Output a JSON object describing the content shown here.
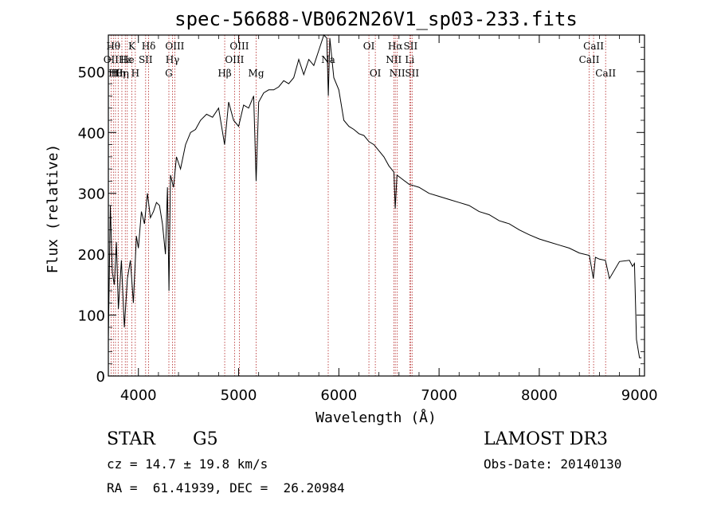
{
  "chart_data": {
    "type": "line",
    "title": "spec-56688-VB062N26V1_sp03-233.fits",
    "xlabel": "Wavelength (Å)",
    "ylabel": "Flux (relative)",
    "xlim": [
      3700,
      9050
    ],
    "ylim": [
      0,
      560
    ],
    "x_ticks": [
      4000,
      5000,
      6000,
      7000,
      8000,
      9000
    ],
    "y_ticks": [
      0,
      100,
      200,
      300,
      400,
      500
    ],
    "line_color": "#000000",
    "marker_color": "#b22222",
    "spectrum": {
      "name": "flux",
      "x": [
        3700,
        3720,
        3740,
        3760,
        3780,
        3800,
        3830,
        3860,
        3890,
        3920,
        3950,
        3980,
        4000,
        4030,
        4060,
        4090,
        4120,
        4150,
        4180,
        4210,
        4240,
        4270,
        4290,
        4305,
        4320,
        4350,
        4380,
        4420,
        4470,
        4520,
        4570,
        4620,
        4680,
        4740,
        4800,
        4860,
        4900,
        4950,
        5000,
        5050,
        5100,
        5150,
        5175,
        5200,
        5250,
        5300,
        5350,
        5400,
        5450,
        5500,
        5550,
        5600,
        5650,
        5700,
        5750,
        5800,
        5850,
        5880,
        5895,
        5910,
        5950,
        6000,
        6050,
        6100,
        6150,
        6200,
        6250,
        6300,
        6350,
        6400,
        6450,
        6500,
        6550,
        6563,
        6580,
        6620,
        6700,
        6800,
        6900,
        7000,
        7100,
        7200,
        7300,
        7400,
        7500,
        7600,
        7700,
        7800,
        7900,
        8000,
        8100,
        8200,
        8300,
        8400,
        8500,
        8540,
        8560,
        8600,
        8660,
        8700,
        8800,
        8900,
        8930,
        8950,
        8970,
        9000,
        9020
      ],
      "y": [
        60,
        280,
        170,
        150,
        220,
        110,
        190,
        80,
        160,
        190,
        120,
        230,
        210,
        270,
        250,
        300,
        260,
        270,
        285,
        280,
        250,
        200,
        310,
        140,
        330,
        310,
        360,
        340,
        380,
        400,
        405,
        420,
        430,
        425,
        440,
        380,
        450,
        420,
        410,
        445,
        440,
        460,
        320,
        450,
        465,
        470,
        470,
        475,
        485,
        480,
        490,
        520,
        495,
        520,
        510,
        535,
        560,
        555,
        460,
        555,
        490,
        470,
        420,
        410,
        405,
        398,
        395,
        385,
        380,
        370,
        360,
        345,
        335,
        275,
        330,
        325,
        315,
        310,
        300,
        295,
        290,
        285,
        280,
        270,
        265,
        255,
        250,
        240,
        232,
        225,
        220,
        215,
        210,
        202,
        198,
        160,
        195,
        192,
        190,
        160,
        188,
        190,
        180,
        185,
        60,
        30,
        30
      ]
    },
    "line_markers": [
      {
        "wavelength": 3727,
        "label": "OII",
        "row": 2
      },
      {
        "wavelength": 3750,
        "label": "Hθ",
        "row": 1
      },
      {
        "wavelength": 3771,
        "label": "Hθ",
        "row": 3
      },
      {
        "wavelength": 3798,
        "label": "Hη",
        "row": 3
      },
      {
        "wavelength": 3835,
        "label": "Hη",
        "row": 3
      },
      {
        "wavelength": 3869,
        "label": "Hε",
        "row": 2
      },
      {
        "wavelength": 3889,
        "label": "He",
        "row": 2
      },
      {
        "wavelength": 3934,
        "label": "K",
        "row": 1
      },
      {
        "wavelength": 3969,
        "label": "H",
        "row": 3
      },
      {
        "wavelength": 4072,
        "label": "SII",
        "row": 2
      },
      {
        "wavelength": 4102,
        "label": "Hδ",
        "row": 1
      },
      {
        "wavelength": 4304,
        "label": "G",
        "row": 3
      },
      {
        "wavelength": 4340,
        "label": "Hγ",
        "row": 2
      },
      {
        "wavelength": 4363,
        "label": "OIII",
        "row": 1
      },
      {
        "wavelength": 4861,
        "label": "Hβ",
        "row": 3
      },
      {
        "wavelength": 4959,
        "label": "OIII",
        "row": 2
      },
      {
        "wavelength": 5007,
        "label": "OIII",
        "row": 1
      },
      {
        "wavelength": 5175,
        "label": "Mg",
        "row": 3
      },
      {
        "wavelength": 5894,
        "label": "Na",
        "row": 2
      },
      {
        "wavelength": 6300,
        "label": "OI",
        "row": 1
      },
      {
        "wavelength": 6364,
        "label": "OI",
        "row": 3
      },
      {
        "wavelength": 6548,
        "label": "NII",
        "row": 2
      },
      {
        "wavelength": 6563,
        "label": "Hα",
        "row": 1
      },
      {
        "wavelength": 6583,
        "label": "NII",
        "row": 3
      },
      {
        "wavelength": 6707,
        "label": "Li",
        "row": 2
      },
      {
        "wavelength": 6716,
        "label": "SII",
        "row": 1
      },
      {
        "wavelength": 6731,
        "label": "SII",
        "row": 3
      },
      {
        "wavelength": 8498,
        "label": "CaII",
        "row": 2
      },
      {
        "wavelength": 8542,
        "label": "CaII",
        "row": 1
      },
      {
        "wavelength": 8662,
        "label": "CaII",
        "row": 3
      }
    ]
  },
  "info": {
    "object_class": "STAR",
    "subclass": "G5",
    "redshift_line": "cz = 14.7 ± 19.8 km/s",
    "coords_line": "RA =  61.41939, DEC =  26.20984",
    "survey": "LAMOST DR3",
    "obs_date_line": "Obs-Date: 20140130"
  }
}
